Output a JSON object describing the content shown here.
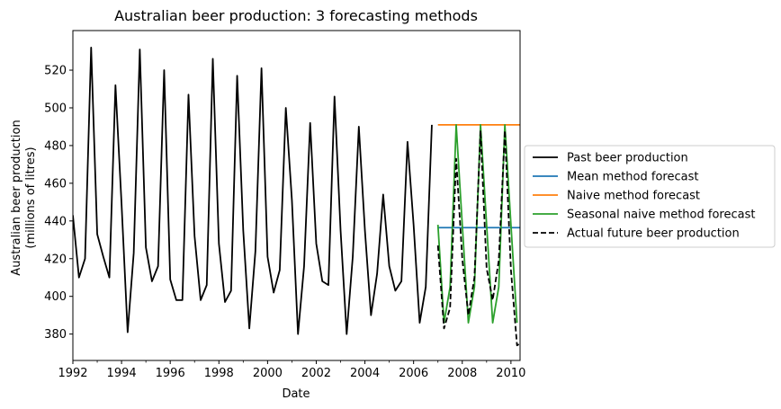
{
  "chart_data": {
    "type": "line",
    "title": "Australian beer production: 3 forecasting methods",
    "xlabel": "Date",
    "ylabel": [
      "Australian beer production",
      "(millions of litres)"
    ],
    "xlim": [
      1992.0,
      2010.375
    ],
    "ylim": [
      366,
      541
    ],
    "xticks": [
      1992,
      1994,
      1996,
      1998,
      2000,
      2002,
      2004,
      2006,
      2008,
      2010
    ],
    "yticks": [
      380,
      400,
      420,
      440,
      460,
      480,
      500,
      520
    ],
    "grid": false,
    "legend_position": "center-right outside",
    "series": [
      {
        "name": "Past beer production",
        "color": "#000000",
        "dash": "solid",
        "x": [
          1992.0,
          1992.25,
          1992.5,
          1992.75,
          1993.0,
          1993.25,
          1993.5,
          1993.75,
          1994.0,
          1994.25,
          1994.5,
          1994.75,
          1995.0,
          1995.25,
          1995.5,
          1995.75,
          1996.0,
          1996.25,
          1996.5,
          1996.75,
          1997.0,
          1997.25,
          1997.5,
          1997.75,
          1998.0,
          1998.25,
          1998.5,
          1998.75,
          1999.0,
          1999.25,
          1999.5,
          1999.75,
          2000.0,
          2000.25,
          2000.5,
          2000.75,
          2001.0,
          2001.25,
          2001.5,
          2001.75,
          2002.0,
          2002.25,
          2002.5,
          2002.75,
          2003.0,
          2003.25,
          2003.5,
          2003.75,
          2004.0,
          2004.25,
          2004.5,
          2004.75,
          2005.0,
          2005.25,
          2005.5,
          2005.75,
          2006.0,
          2006.25,
          2006.5,
          2006.75
        ],
        "values": [
          443,
          410,
          420,
          532,
          433,
          421,
          410,
          512,
          449,
          381,
          423,
          531,
          426,
          408,
          416,
          520,
          409,
          398,
          398,
          507,
          432,
          398,
          406,
          526,
          428,
          397,
          403,
          517,
          435,
          383,
          424,
          521,
          421,
          402,
          414,
          500,
          451,
          380,
          416,
          492,
          428,
          408,
          406,
          506,
          435,
          380,
          421,
          490,
          435,
          390,
          412,
          454,
          416,
          403,
          408,
          482,
          438,
          386,
          405,
          491
        ]
      },
      {
        "name": "Mean method forecast",
        "color": "#1f77b4",
        "dash": "solid",
        "x": [
          2007.0,
          2010.375
        ],
        "values": [
          436.45,
          436.45
        ]
      },
      {
        "name": "Naive method forecast",
        "color": "#ff7f0e",
        "dash": "solid",
        "x": [
          2007.0,
          2010.375
        ],
        "values": [
          491,
          491
        ]
      },
      {
        "name": "Seasonal naive method forecast",
        "color": "#2ca02c",
        "dash": "solid",
        "x": [
          2007.0,
          2007.25,
          2007.5,
          2007.75,
          2008.0,
          2008.25,
          2008.5,
          2008.75,
          2009.0,
          2009.25,
          2009.5,
          2009.75,
          2010.0,
          2010.25
        ],
        "values": [
          438,
          386,
          405,
          491,
          438,
          386,
          405,
          491,
          438,
          386,
          405,
          491,
          438,
          386
        ]
      },
      {
        "name": "Actual future beer production",
        "color": "#000000",
        "dash": "dashed",
        "x": [
          2007.0,
          2007.25,
          2007.5,
          2007.75,
          2008.0,
          2008.25,
          2008.5,
          2008.75,
          2009.0,
          2009.25,
          2009.5,
          2009.75,
          2010.0,
          2010.25,
          2010.375
        ],
        "values": [
          427,
          383,
          394,
          473,
          420,
          390,
          410,
          488,
          415,
          398,
          419,
          488,
          414,
          374,
          375
        ]
      }
    ]
  }
}
